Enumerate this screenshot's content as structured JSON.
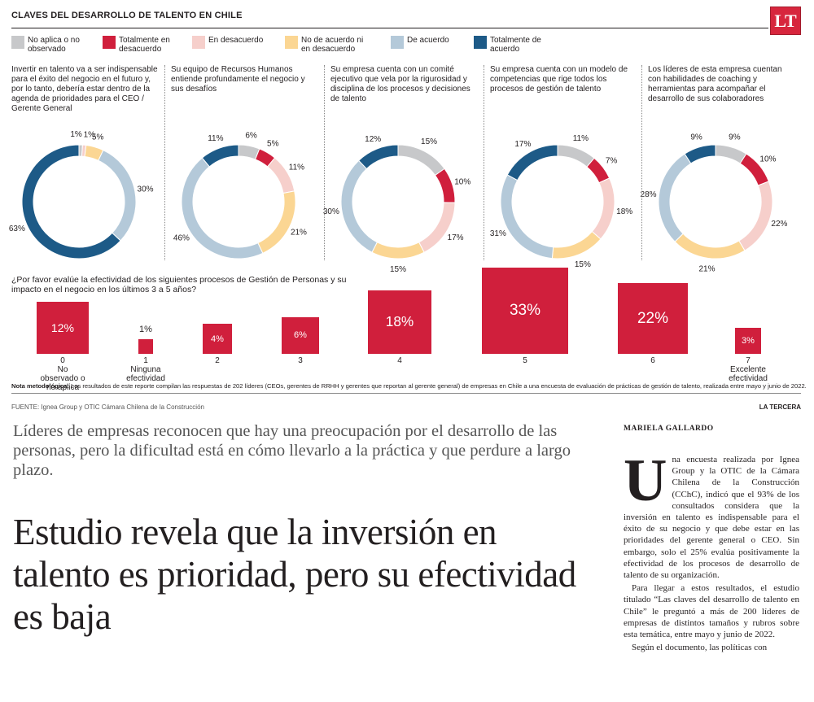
{
  "header": {
    "title": "CLAVES DEL DESARROLLO DE TALENTO EN CHILE",
    "logo": "LT"
  },
  "legend": [
    {
      "label": "No aplica o no observado",
      "color": "#c7c8ca"
    },
    {
      "label": "Totalmente en desacuerdo",
      "color": "#d01f3c"
    },
    {
      "label": "En desacuerdo",
      "color": "#f6cfcb"
    },
    {
      "label": "No de acuerdo ni en desacuerdo",
      "color": "#fbd693"
    },
    {
      "label": "De acuerdo",
      "color": "#b4c9d9"
    },
    {
      "label": "Totalmente de acuerdo",
      "color": "#1d5a87"
    }
  ],
  "chart_data": [
    {
      "type": "pie",
      "title": "Invertir en talento va a ser indispensable para el éxito del negocio en el futuro y, por lo tanto, debería estar dentro de la agenda de prioridades para el CEO / Gerente General",
      "categories": [
        "No aplica o no observado",
        "Totalmente en desacuerdo",
        "En desacuerdo",
        "No de acuerdo ni en desacuerdo",
        "De acuerdo",
        "Totalmente de acuerdo"
      ],
      "values": [
        1,
        0,
        1,
        5,
        30,
        63
      ],
      "labels": [
        "1%",
        "",
        "1%",
        "5%",
        "30%",
        "63%"
      ]
    },
    {
      "type": "pie",
      "title": "Su equipo de Recursos Humanos entiende profundamente el negocio y sus desafíos",
      "categories": [
        "No aplica o no observado",
        "Totalmente en desacuerdo",
        "En desacuerdo",
        "No de acuerdo ni en desacuerdo",
        "De acuerdo",
        "Totalmente de acuerdo"
      ],
      "values": [
        6,
        5,
        11,
        21,
        46,
        11
      ],
      "labels": [
        "6%",
        "5%",
        "11%",
        "21%",
        "46%",
        "11%"
      ]
    },
    {
      "type": "pie",
      "title": "Su empresa cuenta con un comité ejecutivo que vela por la rigurosidad y disciplina de los procesos y decisiones de talento",
      "categories": [
        "No aplica o no observado",
        "Totalmente en desacuerdo",
        "En desacuerdo",
        "No de acuerdo ni en desacuerdo",
        "De acuerdo",
        "Totalmente de acuerdo"
      ],
      "values": [
        15,
        10,
        17,
        15,
        30,
        12
      ],
      "labels": [
        "15%",
        "10%",
        "17%",
        "15%",
        "30%",
        "12%"
      ]
    },
    {
      "type": "pie",
      "title": "Su empresa cuenta con un modelo de competencias que rige todos los procesos de gestión de talento",
      "categories": [
        "No aplica o no observado",
        "Totalmente en desacuerdo",
        "En desacuerdo",
        "No de acuerdo ni en desacuerdo",
        "De acuerdo",
        "Totalmente de acuerdo"
      ],
      "values": [
        11,
        7,
        18,
        15,
        31,
        17
      ],
      "labels": [
        "11%",
        "7%",
        "18%",
        "15%",
        "31%",
        "17%"
      ]
    },
    {
      "type": "pie",
      "title": "Los líderes de esta empresa cuentan con habilidades de coaching y herramientas para acompañar el desarrollo de sus colaboradores",
      "categories": [
        "No aplica o no observado",
        "Totalmente en desacuerdo",
        "En desacuerdo",
        "No de acuerdo ni en desacuerdo",
        "De acuerdo",
        "Totalmente de acuerdo"
      ],
      "values": [
        9,
        10,
        22,
        21,
        28,
        9
      ],
      "labels": [
        "9%",
        "10%",
        "22%",
        "21%",
        "28%",
        "9%"
      ]
    },
    {
      "type": "bar",
      "title": "¿Por favor evalúe la efectividad de los siguientes procesos de Gestión de Personas y su impacto en el negocio en los últimos 3 a 5 años?",
      "categories": [
        "0",
        "1",
        "2",
        "3",
        "4",
        "5",
        "6",
        "7"
      ],
      "category_notes": [
        "No observado o no aplica",
        "Ninguna efectividad",
        "",
        "",
        "",
        "",
        "",
        "Excelente efectividad"
      ],
      "values": [
        12,
        1,
        4,
        6,
        18,
        33,
        22,
        3
      ],
      "labels": [
        "12%",
        "1%",
        "4%",
        "6%",
        "18%",
        "33%",
        "22%",
        "3%"
      ]
    }
  ],
  "note": {
    "label": "Nota metodológica:",
    "text": " Los resultados de este reporte compilan las respuestas de 202 líderes (CEOs, gerentes de RRHH y gerentes que reportan al gerente general) de empresas en Chile a una encuesta de evaluación de prácticas de gestión de talento, realizada entre mayo y junio de 2022."
  },
  "source": "FUENTE: Ignea Group y OTIC Cámara Chilena de la Construcción",
  "publisher": "LA TERCERA",
  "article": {
    "lead": "Líderes de empresas reconocen que hay una preocupación por el desarrollo de las personas, pero la dificultad está en cómo llevarlo a la práctica y que perdure a largo plazo.",
    "headline": "Estudio revela que la inversión en talento es prioridad, pero su efectividad es baja",
    "byline": "MARIELA GALLARDO",
    "dropcap": "U",
    "p1": "na encuesta realizada por Ignea Group y la OTIC de la Cámara Chilena de la Construcción (CChC), indicó que el 93% de los consultados considera que la inversión en talento es indispensable para el éxito de su negocio y que debe estar en las prioridades del gerente general o CEO. Sin embargo, solo el 25% evalúa positivamente la efectividad de los procesos de desarrollo de talento de su organización.",
    "p2": "Para llegar a estos resultados, el estudio titulado “Las claves del desarrollo de talento en Chile” le preguntó a más de 200 líderes de empresas de distintos tamaños y rubros sobre esta temática, entre mayo y junio de 2022.",
    "p3": "Según el documento, las políticas con"
  }
}
